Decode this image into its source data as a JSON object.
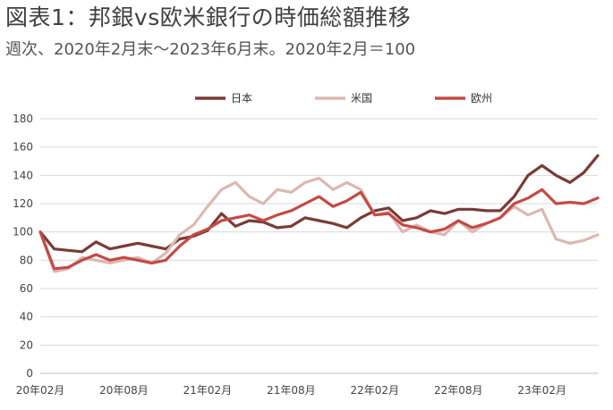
{
  "title": "図表1：邦銀vs欧米銀行の時価総額推移",
  "subtitle": "週次、2020年2月末～2023年6月末。2020年2月＝100",
  "chart_data": {
    "type": "line",
    "xlabel": "",
    "ylabel": "",
    "ylim": [
      0,
      180
    ],
    "yticks": [
      0,
      20,
      40,
      60,
      80,
      100,
      120,
      140,
      160,
      180
    ],
    "xticks": [
      "20年02月",
      "20年08月",
      "21年02月",
      "21年08月",
      "22年02月",
      "22年08月",
      "23年02月"
    ],
    "x_months": [
      "2020-02",
      "2020-03",
      "2020-04",
      "2020-05",
      "2020-06",
      "2020-07",
      "2020-08",
      "2020-09",
      "2020-10",
      "2020-11",
      "2020-12",
      "2021-01",
      "2021-02",
      "2021-03",
      "2021-04",
      "2021-05",
      "2021-06",
      "2021-07",
      "2021-08",
      "2021-09",
      "2021-10",
      "2021-11",
      "2021-12",
      "2022-01",
      "2022-02",
      "2022-03",
      "2022-04",
      "2022-05",
      "2022-06",
      "2022-07",
      "2022-08",
      "2022-09",
      "2022-10",
      "2022-11",
      "2022-12",
      "2023-01",
      "2023-02",
      "2023-03",
      "2023-04",
      "2023-05",
      "2023-06"
    ],
    "grid": "horizontal",
    "legend_position": "top",
    "series": [
      {
        "name": "日本",
        "color": "#7a3b36",
        "values": [
          100,
          88,
          87,
          86,
          93,
          88,
          90,
          92,
          90,
          88,
          95,
          97,
          101,
          113,
          104,
          108,
          107,
          103,
          104,
          110,
          108,
          106,
          103,
          110,
          115,
          117,
          108,
          110,
          115,
          113,
          116,
          116,
          115,
          115,
          125,
          140,
          147,
          140,
          135,
          142,
          154
        ]
      },
      {
        "name": "米国",
        "color": "#dcb8b0",
        "values": [
          100,
          72,
          74,
          82,
          80,
          78,
          80,
          82,
          78,
          85,
          98,
          105,
          118,
          130,
          135,
          125,
          120,
          130,
          128,
          135,
          138,
          130,
          135,
          130,
          112,
          114,
          100,
          105,
          100,
          98,
          108,
          100,
          106,
          110,
          118,
          112,
          116,
          95,
          92,
          94,
          98
        ]
      },
      {
        "name": "欧州",
        "color": "#c44a45",
        "values": [
          100,
          74,
          75,
          80,
          84,
          80,
          82,
          80,
          78,
          80,
          90,
          98,
          102,
          108,
          110,
          112,
          108,
          112,
          115,
          120,
          125,
          118,
          122,
          128,
          112,
          113,
          105,
          103,
          100,
          102,
          108,
          103,
          106,
          110,
          120,
          124,
          130,
          120,
          121,
          120,
          124
        ]
      }
    ]
  }
}
